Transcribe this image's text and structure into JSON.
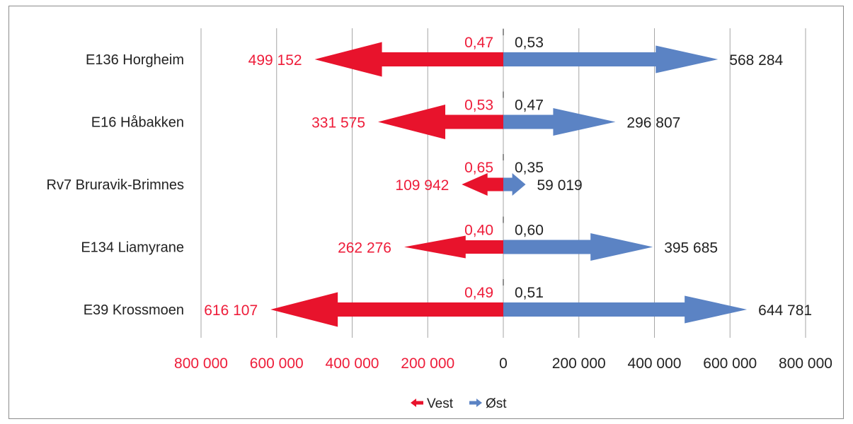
{
  "chart_data": {
    "type": "bar",
    "orientation": "horizontal-diverging",
    "categories": [
      "E136 Horgheim",
      "E16 Håbakken",
      "Rv7 Bruravik-Brimnes",
      "E134 Liamyrane",
      "E39 Krossmoen"
    ],
    "series": [
      {
        "name": "Vest",
        "direction": "left",
        "color": "#e8132c",
        "values": [
          499152,
          331575,
          109942,
          262276,
          616107
        ],
        "value_labels": [
          "499 152",
          "331 575",
          "109 942",
          "262 276",
          "616 107"
        ],
        "shares": [
          "0,47",
          "0,53",
          "0,65",
          "0,40",
          "0,49"
        ]
      },
      {
        "name": "Øst",
        "direction": "right",
        "color": "#5b83c4",
        "values": [
          568284,
          296807,
          59019,
          395685,
          644781
        ],
        "value_labels": [
          "568 284",
          "296 807",
          "59 019",
          "395 685",
          "644 781"
        ],
        "shares": [
          "0,53",
          "0,47",
          "0,35",
          "0,60",
          "0,51"
        ]
      }
    ],
    "xlim": [
      -800000,
      800000
    ],
    "x_ticks": [
      {
        "value": -800000,
        "label": "800 000"
      },
      {
        "value": -600000,
        "label": "600 000"
      },
      {
        "value": -400000,
        "label": "400 000"
      },
      {
        "value": -200000,
        "label": "200 000"
      },
      {
        "value": 0,
        "label": "0"
      },
      {
        "value": 200000,
        "label": "200 000"
      },
      {
        "value": 400000,
        "label": "400 000"
      },
      {
        "value": 600000,
        "label": "600 000"
      },
      {
        "value": 800000,
        "label": "800 000"
      }
    ],
    "negative_tick_color": "#ee1c39",
    "positive_tick_color": "#222222",
    "grid": true,
    "legend_position": "bottom-center"
  }
}
